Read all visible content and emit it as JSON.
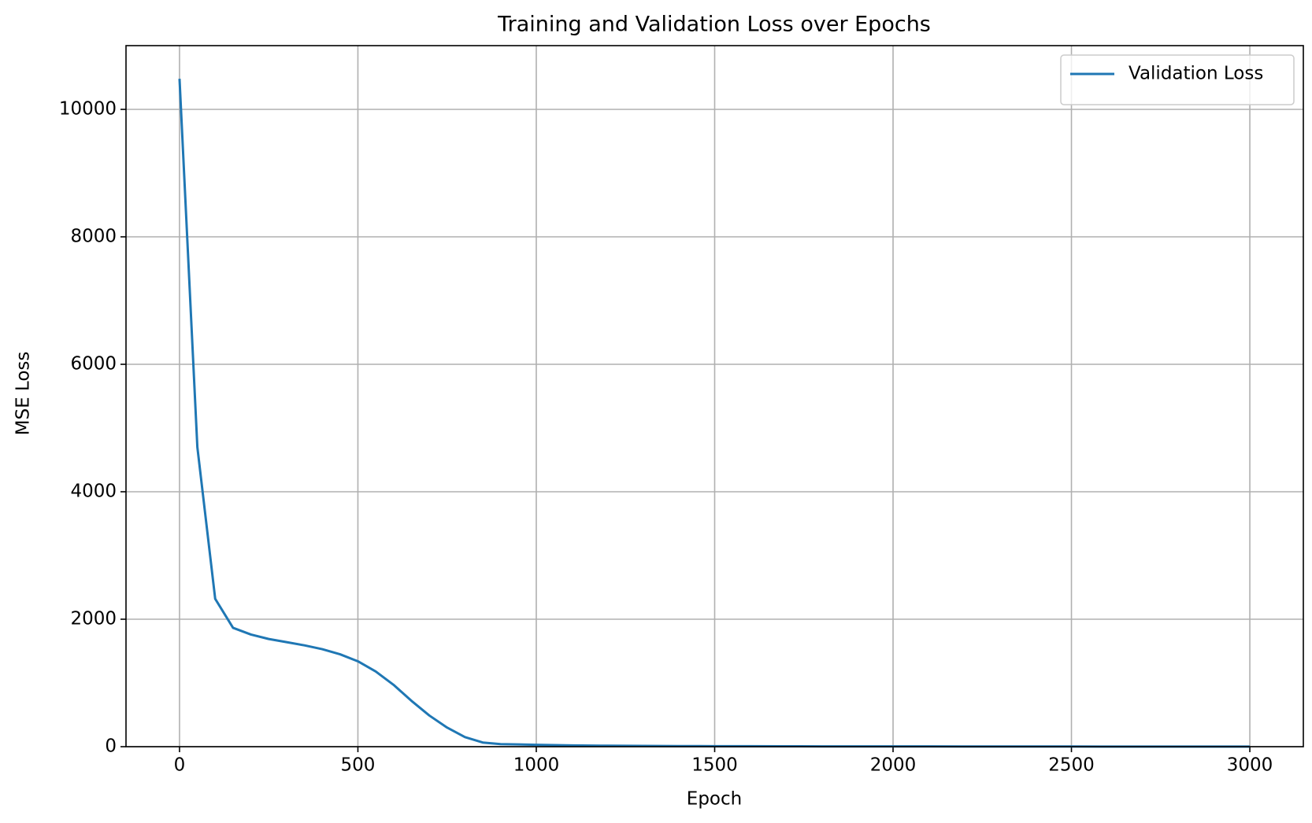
{
  "chart_data": {
    "type": "line",
    "title": "Training and Validation Loss over Epochs",
    "x_label": "Epoch",
    "y_label": "MSE Loss",
    "x": [
      0,
      50,
      100,
      150,
      200,
      250,
      300,
      350,
      400,
      450,
      500,
      550,
      600,
      650,
      700,
      750,
      800,
      850,
      900,
      950,
      1000,
      1100,
      1200,
      1300,
      1400,
      1500,
      1600,
      1700,
      1800,
      1900,
      2000,
      2100,
      2200,
      2300,
      2400,
      2500,
      2600,
      2700,
      2800,
      2900,
      3000
    ],
    "series": [
      {
        "name": "Validation Loss",
        "color": "#1f77b4",
        "values": [
          10480,
          4700,
          2320,
          1865,
          1760,
          1690,
          1640,
          1590,
          1530,
          1450,
          1340,
          1180,
          970,
          720,
          490,
          300,
          150,
          65,
          40,
          35,
          30,
          20,
          15,
          12,
          10,
          8,
          7,
          6,
          5,
          5,
          4,
          4,
          3,
          3,
          3,
          3,
          2,
          2,
          2,
          2,
          2
        ]
      }
    ],
    "xlim": [
      -150,
      3150
    ],
    "ylim": [
      0,
      11000
    ],
    "xticks": [
      0,
      500,
      1000,
      1500,
      2000,
      2500,
      3000
    ],
    "yticks": [
      0,
      2000,
      4000,
      6000,
      8000,
      10000
    ],
    "grid": true,
    "legend": "upper right"
  }
}
